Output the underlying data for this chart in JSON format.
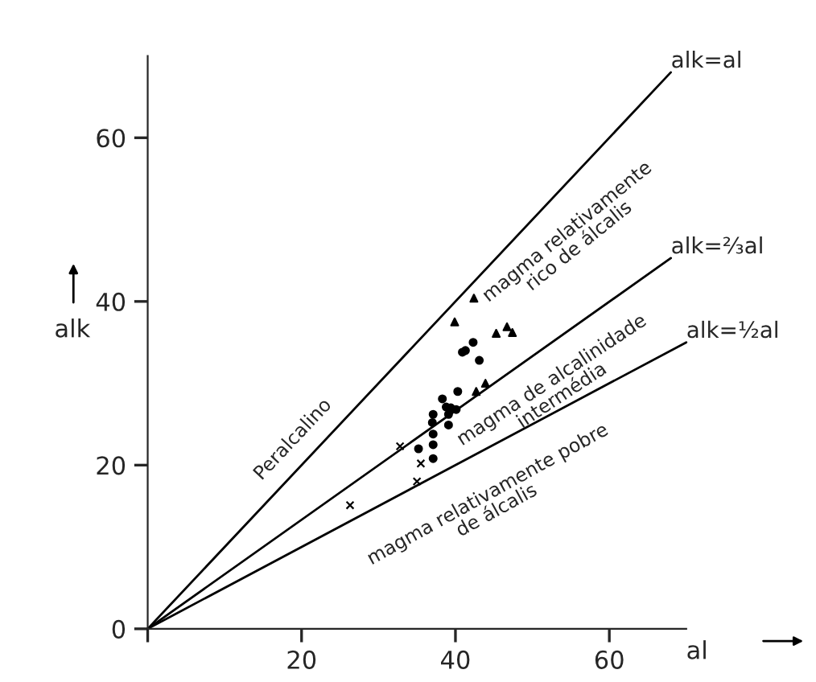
{
  "chart_data": {
    "type": "scatter",
    "xlabel": "al",
    "ylabel": "alk",
    "xlim": [
      0,
      70
    ],
    "ylim": [
      0,
      70
    ],
    "xticks": [
      {
        "value": 0,
        "label": null
      },
      20,
      40,
      60
    ],
    "yticks": [
      0,
      20,
      40,
      60
    ],
    "grid": false,
    "legend": false,
    "series": [
      {
        "marker": "triangle",
        "color": "#000000",
        "x": [
          42.4,
          39.9,
          45.3,
          46.7,
          47.4,
          42.7,
          43.9
        ],
        "values": [
          40.4,
          37.5,
          36.1,
          36.9,
          36.2,
          29.0,
          30.0
        ]
      },
      {
        "marker": "circle",
        "color": "#000000",
        "x": [
          42.3,
          40.9,
          41.3,
          43.1,
          40.3,
          38.3,
          38.8,
          39.4,
          40.1,
          37.1,
          39.1,
          37.0,
          39.1,
          37.1,
          35.2,
          37.1,
          37.1
        ],
        "values": [
          35.0,
          33.8,
          34.0,
          32.8,
          29.0,
          28.1,
          27.1,
          27.0,
          26.8,
          26.2,
          26.2,
          25.2,
          24.9,
          23.8,
          22.0,
          22.5,
          20.8
        ]
      },
      {
        "marker": "cross",
        "color": "#000000",
        "x": [
          32.8,
          35.5,
          35.0,
          26.3
        ],
        "values": [
          22.3,
          20.2,
          18.0,
          15.1
        ]
      },
      {
        "type": "line",
        "name": "alk=al",
        "color": "#000000",
        "x": [
          0,
          68
        ],
        "values": [
          0,
          68
        ]
      },
      {
        "type": "line",
        "name": "alk=⅔al",
        "color": "#000000",
        "x": [
          0,
          68
        ],
        "values": [
          0,
          45.3
        ]
      },
      {
        "type": "line",
        "name": "alk=½al",
        "color": "#000000",
        "x": [
          0,
          70
        ],
        "values": [
          0,
          35
        ]
      }
    ],
    "annotations": [
      "Peralcalino",
      "magma relativamente\nrico de álcalis",
      "magma de alcalinidade\nintermédia",
      "magma relativamente pobre\nde álcalis"
    ]
  }
}
